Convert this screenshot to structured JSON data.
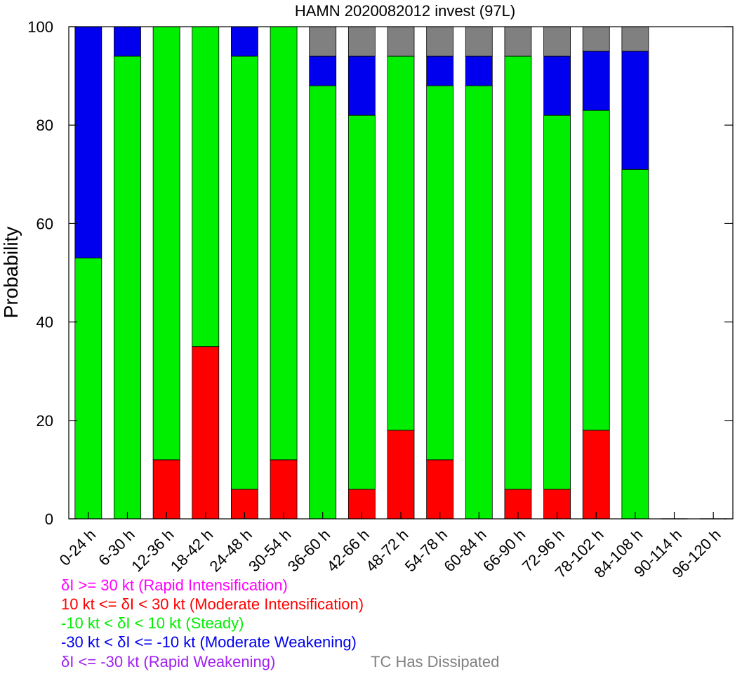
{
  "chart_data": {
    "type": "bar",
    "stacked": true,
    "title": "HAMN 2020082012 invest (97L)",
    "ylabel": "Probability",
    "xlabel": "",
    "ylim": [
      0,
      100
    ],
    "yticks": [
      0,
      20,
      40,
      60,
      80,
      100
    ],
    "categories": [
      "0-24 h",
      "6-30 h",
      "12-36 h",
      "18-42 h",
      "24-48 h",
      "30-54 h",
      "36-60 h",
      "42-66 h",
      "48-72 h",
      "54-78 h",
      "60-84 h",
      "66-90 h",
      "72-96 h",
      "78-102 h",
      "84-108 h",
      "90-114 h",
      "96-120 h"
    ],
    "series": [
      {
        "key": "ri",
        "color": "#ff00ff",
        "values": [
          0,
          0,
          0,
          0,
          0,
          0,
          0,
          0,
          0,
          0,
          0,
          0,
          0,
          0,
          0,
          0,
          0
        ]
      },
      {
        "key": "mi",
        "color": "#ff0000",
        "values": [
          0,
          0,
          12,
          35,
          6,
          12,
          0,
          6,
          18,
          12,
          0,
          6,
          6,
          18,
          0,
          0,
          0
        ]
      },
      {
        "key": "steady",
        "color": "#00ee00",
        "values": [
          53,
          94,
          88,
          65,
          88,
          88,
          88,
          76,
          76,
          76,
          88,
          88,
          76,
          65,
          71,
          0,
          0
        ]
      },
      {
        "key": "mw",
        "color": "#0000ee",
        "values": [
          47,
          6,
          0,
          0,
          6,
          0,
          6,
          12,
          0,
          6,
          6,
          0,
          12,
          12,
          24,
          0,
          0
        ]
      },
      {
        "key": "rw",
        "color": "#a020f0",
        "values": [
          0,
          0,
          0,
          0,
          0,
          0,
          0,
          0,
          0,
          0,
          0,
          0,
          0,
          0,
          0,
          0,
          0
        ]
      },
      {
        "key": "dissipated",
        "color": "#808080",
        "values": [
          0,
          0,
          0,
          0,
          0,
          0,
          6,
          6,
          6,
          6,
          6,
          6,
          6,
          5,
          5,
          0,
          0
        ]
      }
    ],
    "legend": [
      {
        "text": "δI >= 30 kt (Rapid Intensification)",
        "color": "#ff00ff"
      },
      {
        "text": "10 kt <= δI < 30 kt (Moderate Intensification)",
        "color": "#ff0000"
      },
      {
        "text": "-10 kt < δI < 10 kt (Steady)",
        "color": "#00ee00"
      },
      {
        "text": "-30 kt < δI <= -10 kt (Moderate Weakening)",
        "color": "#0000ee"
      },
      {
        "text": "δI <= -30 kt (Rapid Weakening)",
        "color": "#a020f0"
      },
      {
        "text": "TC Has Dissipated",
        "color": "#808080"
      }
    ]
  }
}
